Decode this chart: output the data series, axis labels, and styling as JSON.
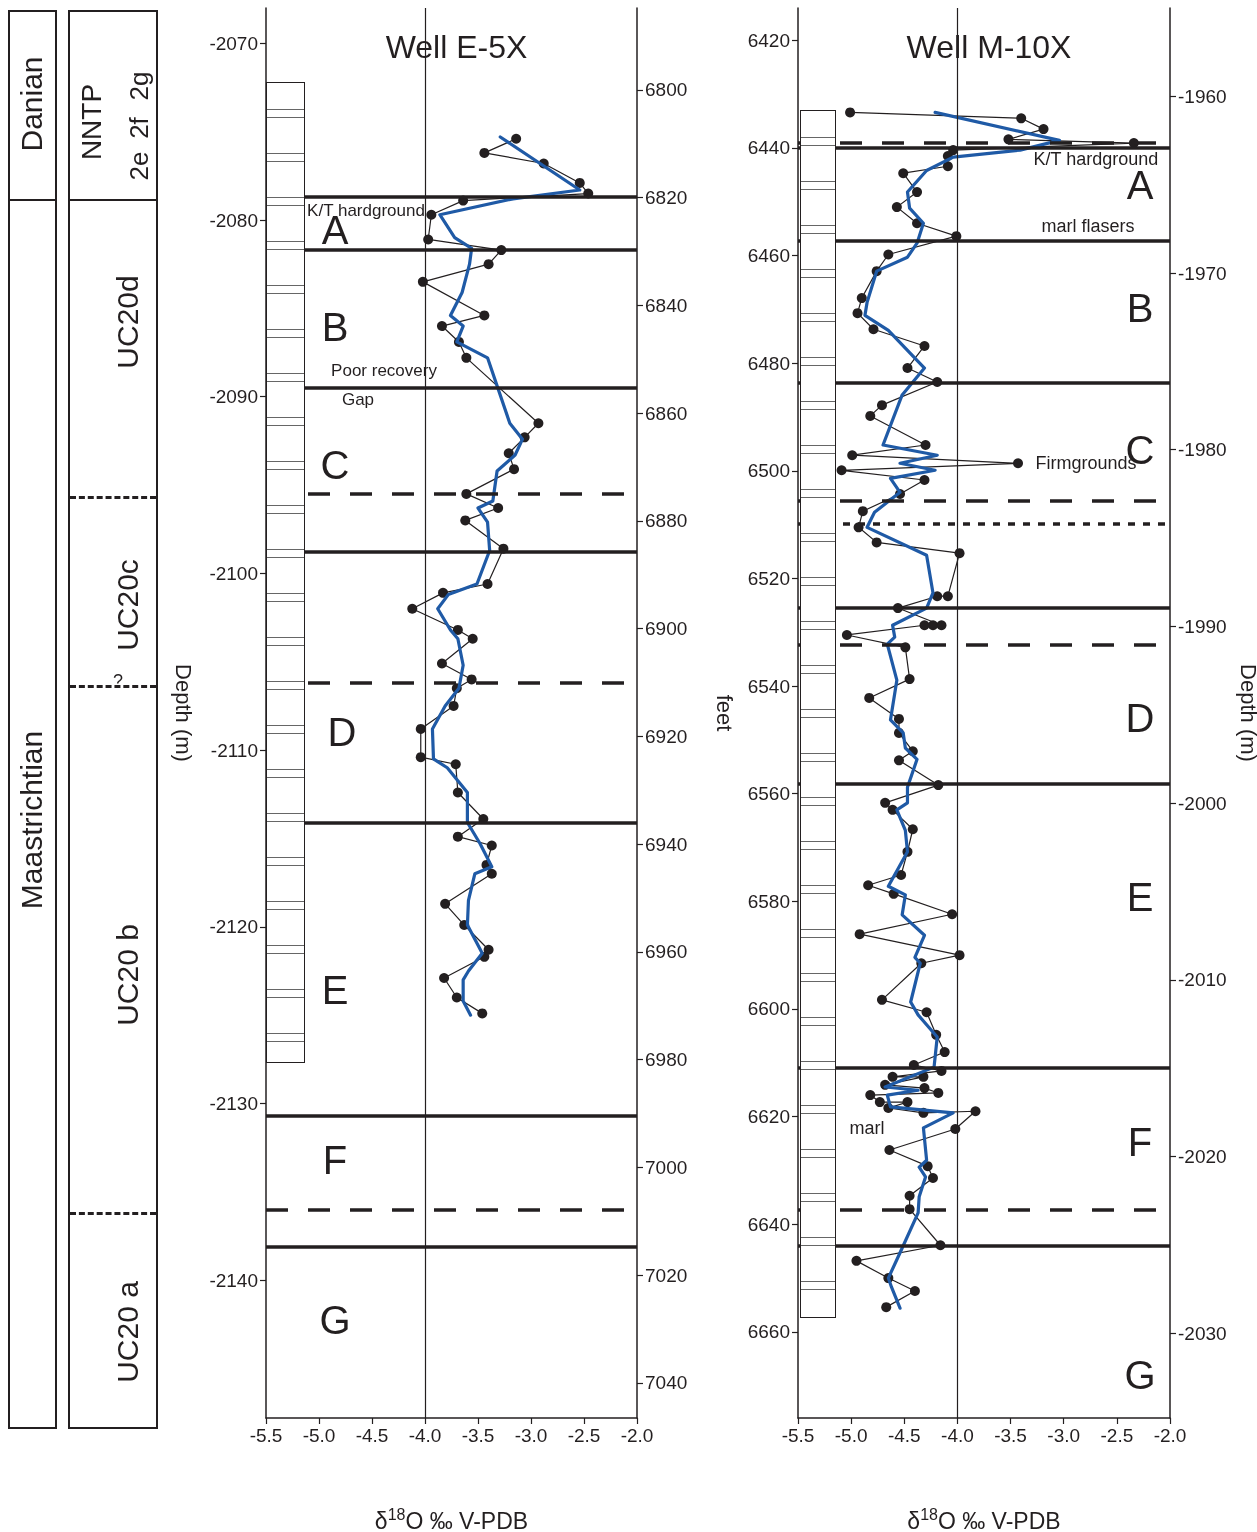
{
  "chart_data": [
    {
      "type": "line",
      "title": "Well E-5X",
      "xlabel": "δ$^{18}$O ‰ V-PDB",
      "ylabel": "Depth (m)",
      "y2label": "feet",
      "xlim": [
        -5.5,
        -2
      ],
      "xticks": [
        -5.5,
        {
          "value": -5,
          "label": "-5.0"
        },
        -4.5,
        {
          "value": -4,
          "label": "-4.0"
        },
        -3.5,
        {
          "value": -3,
          "label": "-3.0"
        },
        -2.5,
        {
          "value": -2,
          "label": "-2.0"
        }
      ],
      "ylim": [
        -2147.8,
        -2068
      ],
      "yticks": [
        -2070,
        -2080,
        -2090,
        -2100,
        -2110,
        -2120,
        -2130,
        -2140
      ],
      "y2lim": [
        7046.5,
        6784.8
      ],
      "y2ticks": [
        6800,
        6820,
        6840,
        6860,
        6880,
        6900,
        6920,
        6940,
        6960,
        6980,
        7000,
        7020,
        7040
      ],
      "series": [
        {
          "color": "#231f20",
          "marker": "circle",
          "x": [
            -3.14,
            -3.44,
            -2.88,
            -2.54,
            -2.46,
            -3.64,
            -3.94,
            -3.97,
            -3.28,
            -3.4,
            -4.02,
            -3.44,
            -3.84,
            -3.68,
            -3.61,
            -2.93,
            -3.06,
            -3.21,
            -3.16,
            -3.61,
            -3.31,
            -3.62,
            -3.26,
            -3.41,
            -3.83,
            -4.12,
            -3.69,
            -3.55,
            -3.84,
            -3.56,
            -3.7,
            -3.73,
            -4.04,
            -4.04,
            -3.71,
            -3.69,
            -3.45,
            -3.69,
            -3.37,
            -3.42,
            -3.37,
            -3.81,
            -3.63,
            -3.4,
            -3.44,
            -3.82,
            -3.7,
            -3.46
          ],
          "values": [
            -2075.4,
            -2076.2,
            -2076.8,
            -2077.9,
            -2078.5,
            -2078.9,
            -2079.7,
            -2081.1,
            -2081.7,
            -2082.5,
            -2083.5,
            -2085.4,
            -2086,
            -2086.9,
            -2087.8,
            -2091.5,
            -2092.3,
            -2093.2,
            -2094.1,
            -2095.5,
            -2096.3,
            -2097,
            -2098.6,
            -2100.6,
            -2101.1,
            -2102,
            -2103.2,
            -2103.7,
            -2105.1,
            -2106,
            -2106.5,
            -2107.5,
            -2108.8,
            -2110.4,
            -2110.8,
            -2112.4,
            -2113.9,
            -2114.9,
            -2115.4,
            -2116.5,
            -2117,
            -2118.7,
            -2119.9,
            -2121.3,
            -2121.7,
            -2122.9,
            -2124,
            -2124.9
          ]
        },
        {
          "color": "#1f5aa6",
          "marker": "none",
          "x": [
            -3.29,
            -2.54,
            -3.17,
            -3.86,
            -3.72,
            -3.56,
            -3.58,
            -3.65,
            -3.76,
            -3.64,
            -3.7,
            -3.41,
            -3.2,
            -3.08,
            -3.15,
            -3.32,
            -3.36,
            -3.5,
            -3.41,
            -3.39,
            -3.51,
            -3.78,
            -3.88,
            -3.76,
            -3.69,
            -3.64,
            -3.68,
            -3.81,
            -3.93,
            -3.92,
            -3.79,
            -3.6,
            -3.6,
            -3.48,
            -3.37,
            -3.53,
            -3.59,
            -3.6,
            -3.46,
            -3.59,
            -3.64,
            -3.64,
            -3.57
          ],
          "values": [
            -2075.3,
            -2078.3,
            -2078.8,
            -2079.7,
            -2081,
            -2081.6,
            -2082.5,
            -2084.1,
            -2085.4,
            -2086,
            -2086.9,
            -2087.8,
            -2091.5,
            -2092.4,
            -2093.3,
            -2094.2,
            -2095.9,
            -2096.3,
            -2097.1,
            -2098.7,
            -2100.6,
            -2101.2,
            -2102,
            -2103.2,
            -2103.7,
            -2105.2,
            -2106.5,
            -2107.5,
            -2108.8,
            -2110.5,
            -2111,
            -2112.4,
            -2114.1,
            -2115.3,
            -2116.6,
            -2117,
            -2118.5,
            -2119.9,
            -2121.5,
            -2122.5,
            -2123,
            -2124.2,
            -2125
          ]
        }
      ],
      "ref_lines": [
        {
          "axis": "x",
          "value": -4,
          "line_style": "solid"
        },
        {
          "axis": "y",
          "value": -2078.7,
          "line_style": "solid"
        },
        {
          "axis": "y",
          "value": -2081.7,
          "line_style": "solid"
        },
        {
          "axis": "y",
          "value": -2089.5,
          "line_style": "solid"
        },
        {
          "axis": "y",
          "value": -2098.8,
          "line_style": "solid"
        },
        {
          "axis": "y",
          "value": -2114.1,
          "line_style": "solid"
        },
        {
          "axis": "y",
          "value": -2130.7,
          "line_style": "solid"
        },
        {
          "axis": "y",
          "value": -2138.1,
          "line_style": "solid"
        },
        {
          "axis": "y",
          "value": -2095.5,
          "line_style": "dashed"
        },
        {
          "axis": "y",
          "value": -2106.2,
          "line_style": "dashed"
        },
        {
          "axis": "y",
          "value": -2136,
          "line_style": "dashed"
        }
      ],
      "annotations": [
        "A",
        "B",
        "C",
        "D",
        "E",
        "F",
        "G",
        "K/T hardground",
        "Poor recovery",
        "Gap",
        "Danian",
        "Maastrichtian",
        "NNTP",
        "2e",
        "2f",
        "2g",
        "UC20d",
        "UC20c",
        "?",
        "UC20 b",
        "UC20 a"
      ]
    },
    {
      "type": "line",
      "title": "Well M-10X",
      "xlabel": "δ$^{18}$O ‰ V-PDB",
      "y2label": "Depth (m)",
      "xlim": [
        -5.5,
        -2
      ],
      "xticks": [
        -5.5,
        {
          "value": -5,
          "label": "-5.0"
        },
        -4.5,
        {
          "value": -4,
          "label": "-4.0"
        },
        -3.5,
        {
          "value": -3,
          "label": "-3.0"
        },
        -2.5,
        {
          "value": -2,
          "label": "-2.0"
        }
      ],
      "ylim": [
        6676,
        6414
      ],
      "yticks": [
        6420,
        6440,
        6460,
        6480,
        6500,
        6520,
        6540,
        6560,
        6580,
        6600,
        6620,
        6640,
        6660
      ],
      "y2lim": [
        -2034.8,
        -1955
      ],
      "y2ticks": [
        -1960,
        -1970,
        -1980,
        -1990,
        -2000,
        -2010,
        -2020,
        -2030
      ],
      "series": [
        {
          "color": "#231f20",
          "marker": "circle",
          "x": [
            -5.01,
            -3.4,
            -3.19,
            -3.52,
            -2.34,
            -4.04,
            -4.09,
            -4.09,
            -4.51,
            -4.38,
            -4.57,
            -4.38,
            -4.01,
            -4.65,
            -4.76,
            -4.9,
            -4.94,
            -4.79,
            -4.31,
            -4.47,
            -4.19,
            -4.71,
            -4.82,
            -4.3,
            -4.99,
            -3.43,
            -5.09,
            -4.31,
            -4.54,
            -4.89,
            -4.93,
            -4.76,
            -3.98,
            -4.09,
            -4.19,
            -4.56,
            -4.15,
            -4.23,
            -4.31,
            -5.04,
            -4.49,
            -4.45,
            -4.83,
            -4.55,
            -4.55,
            -4.42,
            -4.55,
            -4.18,
            -4.68,
            -4.61,
            -4.42,
            -4.47,
            -4.53,
            -4.84,
            -4.6,
            -4.05,
            -4.92,
            -3.98,
            -4.34,
            -4.71,
            -4.29,
            -4.2,
            -4.12,
            -4.41,
            -4.15,
            -4.61,
            -4.32,
            -4.68,
            -4.31,
            -4.18,
            -4.82,
            -4.73,
            -4.47,
            -4.65,
            -4.32,
            -3.83,
            -4.02,
            -4.64,
            -4.28,
            -4.23,
            -4.45,
            -4.45,
            -4.16,
            -4.95,
            -4.65,
            -4.4,
            -4.67
          ],
          "values": [
            6433.4,
            6434.5,
            6436.5,
            6438.4,
            6439.1,
            6440.4,
            6441.5,
            6443.4,
            6444.7,
            6448.2,
            6451,
            6454,
            6456.4,
            6459.8,
            6462.9,
            6467.9,
            6470.7,
            6473.7,
            6476.8,
            6480.9,
            6483.5,
            6487.8,
            6489.8,
            6495.2,
            6497.1,
            6498.6,
            6499.9,
            6501.7,
            6504.3,
            6507.5,
            6510.5,
            6513.3,
            6515.3,
            6523.3,
            6523.3,
            6525.5,
            6528.7,
            6528.7,
            6528.7,
            6530.5,
            6532.8,
            6538.7,
            6542.2,
            6546.1,
            6548.7,
            6552.1,
            6553.8,
            6558.4,
            6561.7,
            6563,
            6566.6,
            6570.8,
            6575.1,
            6577,
            6578.6,
            6582.4,
            6586.1,
            6590,
            6591.5,
            6598.3,
            6600.6,
            6604.8,
            6608,
            6610.4,
            6611.5,
            6612.6,
            6612.6,
            6614.1,
            6614.7,
            6615.6,
            6616,
            6617.3,
            6617.3,
            6618.4,
            6619.3,
            6619,
            6622.3,
            6626.2,
            6629.2,
            6631.4,
            6634.7,
            6637.2,
            6643.9,
            6646.8,
            6650,
            6652.4,
            6655.4
          ]
        },
        {
          "color": "#1f5aa6",
          "marker": "none",
          "x": [
            -4.21,
            -3.04,
            -3.41,
            -4.04,
            -4.29,
            -4.47,
            -4.45,
            -4.32,
            -4.38,
            -4.47,
            -4.76,
            -4.85,
            -4.87,
            -4.65,
            -4.31,
            -4.52,
            -4.7,
            -4.19,
            -4.54,
            -4.21,
            -4.63,
            -4.54,
            -4.78,
            -4.85,
            -4.29,
            -4.23,
            -4.29,
            -4.61,
            -4.59,
            -4.66,
            -4.57,
            -4.63,
            -4.51,
            -4.49,
            -4.38,
            -4.47,
            -4.47,
            -4.57,
            -4.49,
            -4.47,
            -4.65,
            -4.49,
            -4.52,
            -4.31,
            -4.4,
            -4.35,
            -4.44,
            -4.37,
            -4.19,
            -4.22,
            -4.68,
            -4.37,
            -4.66,
            -4.63,
            -4.04,
            -4.32,
            -4.29,
            -4.36,
            -4.3,
            -4.36,
            -4.37,
            -4.54,
            -4.65,
            -4.62,
            -4.54
          ],
          "values": [
            6433.4,
            6438.6,
            6440.4,
            6441.7,
            6444.2,
            6448.2,
            6451.2,
            6454,
            6457.7,
            6460.3,
            6462.9,
            6468.7,
            6471.1,
            6473.9,
            6480.9,
            6485.9,
            6495.2,
            6497.1,
            6498.6,
            6499.9,
            6501.4,
            6504,
            6507.7,
            6510.5,
            6515.7,
            6522.7,
            6525.5,
            6528.7,
            6530.9,
            6532.2,
            6538.9,
            6546.3,
            6548.7,
            6551.5,
            6553.6,
            6558.8,
            6561.7,
            6563,
            6566.8,
            6570.8,
            6577.2,
            6578.8,
            6582.5,
            6586.3,
            6590.4,
            6591.5,
            6598.7,
            6601.1,
            6605.2,
            6610.8,
            6614.5,
            6615.1,
            6616,
            6618.2,
            6619.3,
            6622.1,
            6628.1,
            6629.4,
            6631.2,
            6634.9,
            6637.9,
            6645.3,
            6650,
            6651.7,
            6655.6
          ]
        }
      ],
      "ref_lines": [
        {
          "axis": "x",
          "value": -4,
          "line_style": "solid"
        },
        {
          "axis": "y",
          "value": 6439.1,
          "line_style": "dashed"
        },
        {
          "axis": "y",
          "value": 6439.9,
          "line_style": "solid"
        },
        {
          "axis": "y",
          "value": 6457.2,
          "line_style": "solid"
        },
        {
          "axis": "y",
          "value": 6483.7,
          "line_style": "solid"
        },
        {
          "axis": "y",
          "value": 6525.5,
          "line_style": "solid"
        },
        {
          "axis": "y",
          "value": 6558.2,
          "line_style": "solid"
        },
        {
          "axis": "y",
          "value": 6611,
          "line_style": "solid"
        },
        {
          "axis": "y",
          "value": 6644,
          "line_style": "solid"
        },
        {
          "axis": "y",
          "value": 6505.5,
          "line_style": "dashed"
        },
        {
          "axis": "y",
          "value": 6509.9,
          "line_style": "dotted"
        },
        {
          "axis": "y",
          "value": 6532.4,
          "line_style": "dashed"
        },
        {
          "axis": "y",
          "value": 6637.3,
          "line_style": "dashed"
        }
      ],
      "annotations": [
        "A",
        "B",
        "C",
        "D",
        "E",
        "F",
        "G",
        "K/T hardground",
        "marl flasers",
        "Firmgrounds",
        "marl"
      ]
    }
  ]
}
